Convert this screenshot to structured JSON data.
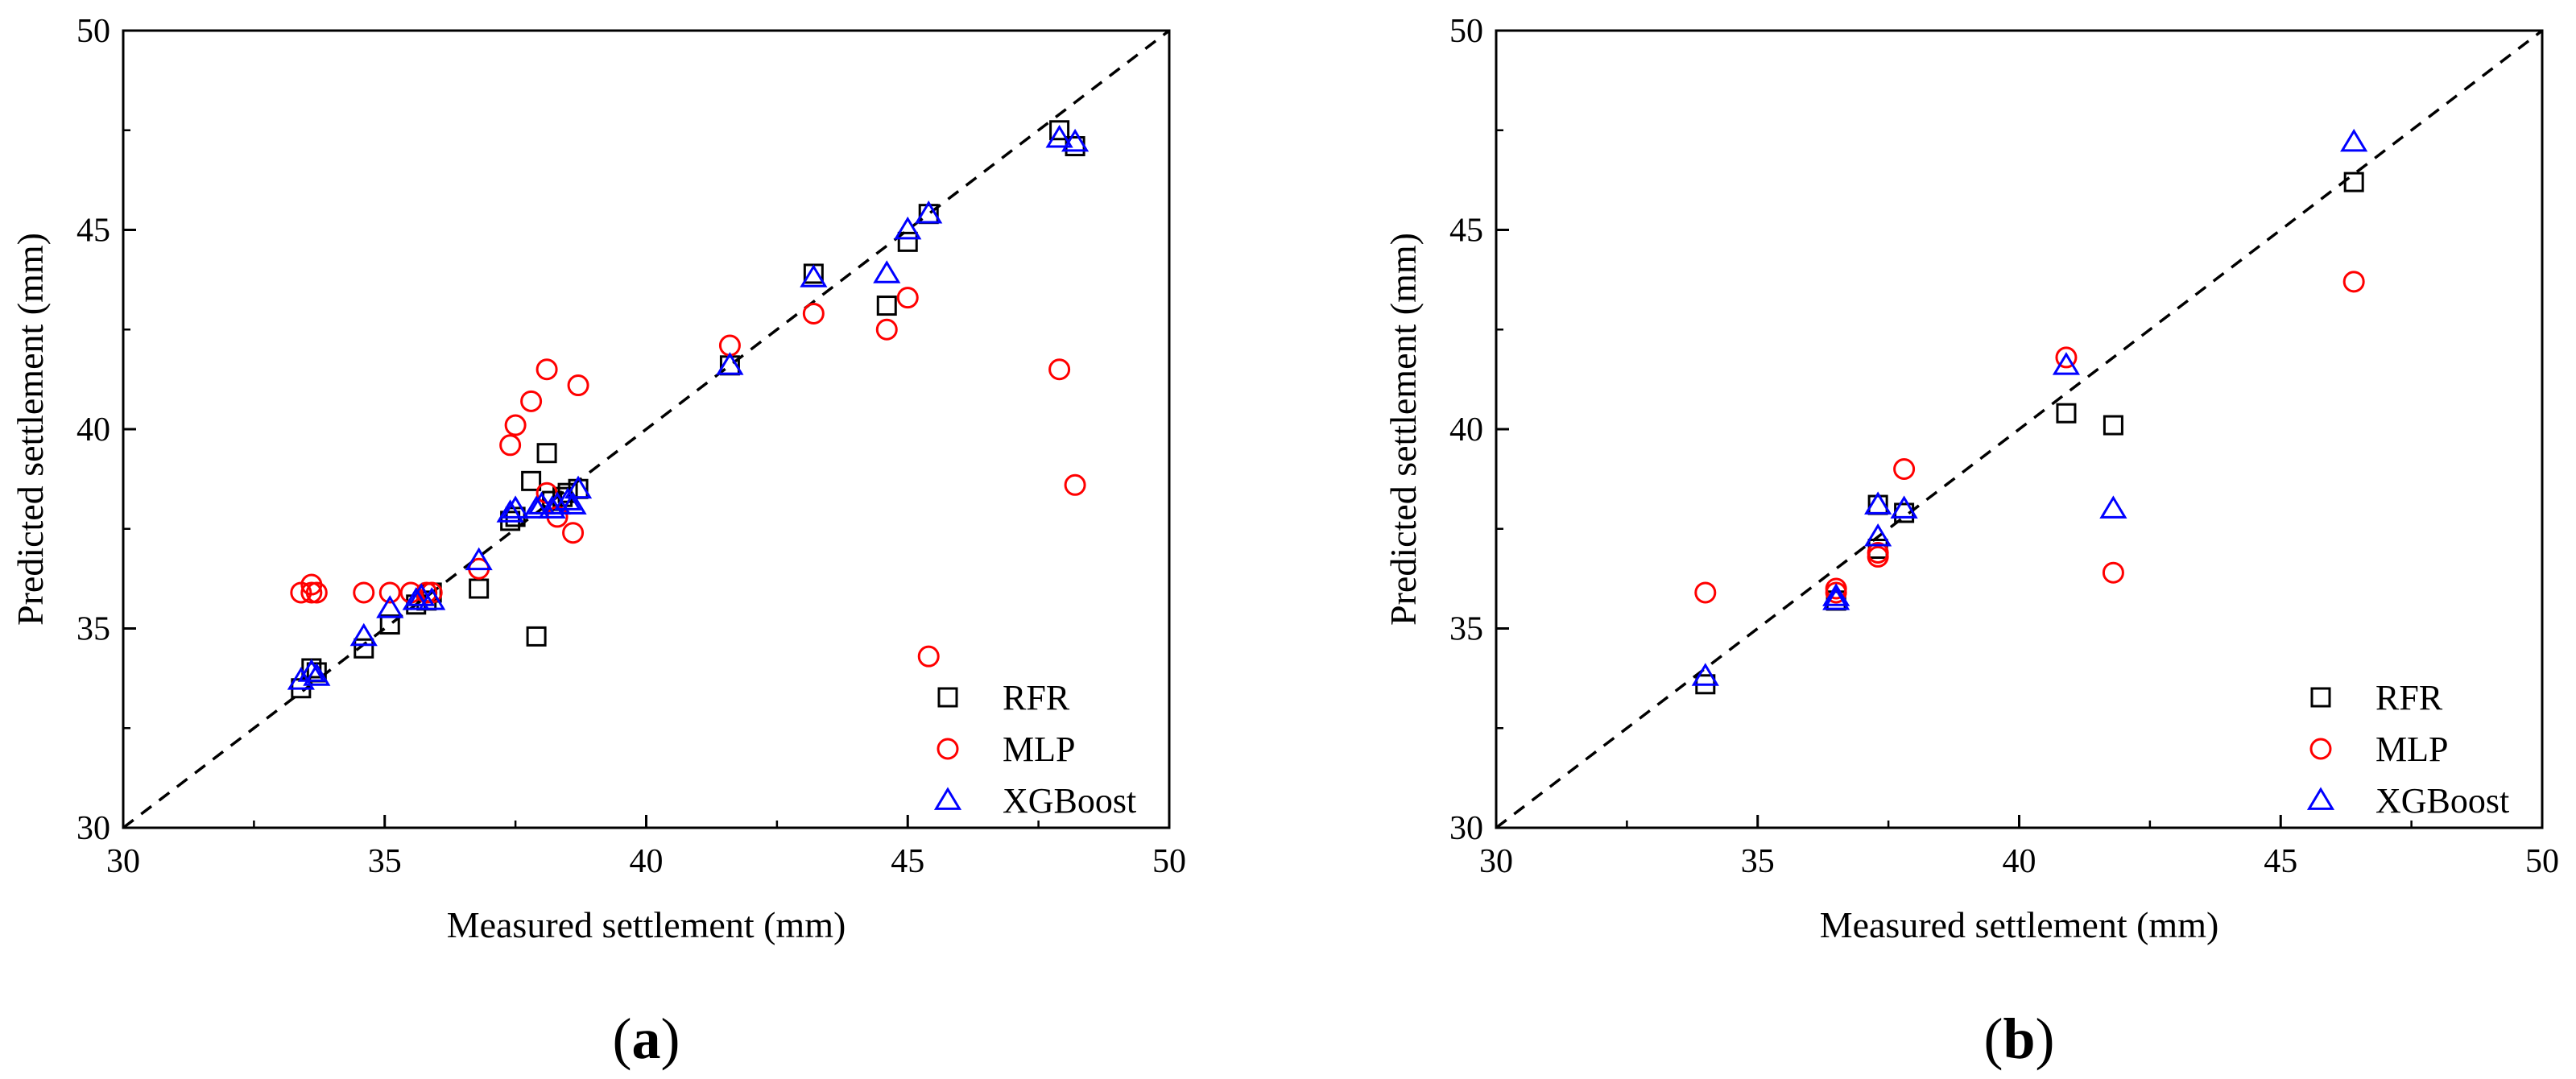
{
  "colors": {
    "RFR": "#000000",
    "MLP": "#ff0000",
    "XGBoost": "#0000ff"
  },
  "chart_data": [
    {
      "type": "scatter",
      "panel_label": "a",
      "xlabel": "Measured settlement (mm)",
      "ylabel": "Predicted settlement (mm)",
      "xlim": [
        30,
        50
      ],
      "ylim": [
        30,
        50
      ],
      "xticks": [
        "30",
        "35",
        "40",
        "45",
        "50"
      ],
      "yticks": [
        "30",
        "35",
        "40",
        "45",
        "50"
      ],
      "reference_line": "y = x (dashed)",
      "legend_position": "bottom-right",
      "series": [
        {
          "name": "RFR",
          "marker": "square",
          "x": [
            33.4,
            33.6,
            33.7,
            34.6,
            35.1,
            35.6,
            35.8,
            35.9,
            36.8,
            37.4,
            37.5,
            37.8,
            37.9,
            38.1,
            38.2,
            38.4,
            38.5,
            38.7,
            41.6,
            43.2,
            44.6,
            45.0,
            45.4,
            47.9,
            48.2
          ],
          "y": [
            33.5,
            34.0,
            33.9,
            34.5,
            35.1,
            35.6,
            35.7,
            35.9,
            36.0,
            37.7,
            37.8,
            38.7,
            34.8,
            39.4,
            38.2,
            38.3,
            38.4,
            38.5,
            41.6,
            43.9,
            43.1,
            44.7,
            45.4,
            47.5,
            47.1
          ]
        },
        {
          "name": "MLP",
          "marker": "circle",
          "x": [
            33.4,
            33.6,
            33.6,
            33.7,
            34.6,
            35.1,
            35.5,
            35.8,
            35.9,
            36.8,
            37.4,
            37.5,
            37.8,
            38.1,
            38.1,
            38.3,
            38.6,
            38.7,
            41.6,
            43.2,
            44.6,
            45.0,
            45.4,
            47.9,
            48.2
          ],
          "y": [
            35.9,
            36.1,
            35.9,
            35.9,
            35.9,
            35.9,
            35.9,
            35.9,
            35.9,
            36.5,
            39.6,
            40.1,
            40.7,
            41.5,
            38.4,
            37.8,
            37.4,
            41.1,
            42.1,
            42.9,
            42.5,
            43.3,
            34.3,
            41.5,
            38.6
          ]
        },
        {
          "name": "XGBoost",
          "marker": "triangle",
          "x": [
            33.4,
            33.6,
            33.7,
            34.6,
            35.1,
            35.6,
            35.7,
            35.9,
            36.8,
            37.4,
            37.5,
            37.9,
            38.0,
            38.2,
            38.3,
            38.5,
            38.6,
            38.7,
            41.6,
            43.2,
            44.6,
            45.0,
            45.4,
            47.9,
            48.2
          ],
          "y": [
            33.7,
            33.9,
            33.8,
            34.8,
            35.5,
            35.7,
            35.8,
            35.7,
            36.7,
            37.9,
            38.0,
            38.0,
            38.1,
            38.0,
            38.1,
            38.2,
            38.1,
            38.5,
            41.6,
            43.8,
            43.9,
            45.0,
            45.4,
            47.3,
            47.2
          ]
        }
      ]
    },
    {
      "type": "scatter",
      "panel_label": "b",
      "xlabel": "Measured settlement (mm)",
      "ylabel": "Predicted settlement (mm)",
      "xlim": [
        30,
        50
      ],
      "ylim": [
        30,
        50
      ],
      "xticks": [
        "30",
        "35",
        "40",
        "45",
        "50"
      ],
      "yticks": [
        "30",
        "35",
        "40",
        "45",
        "50"
      ],
      "reference_line": "y = x (dashed)",
      "legend_position": "bottom-right",
      "series": [
        {
          "name": "RFR",
          "marker": "square",
          "x": [
            34.0,
            36.5,
            36.5,
            37.3,
            37.3,
            37.8,
            40.9,
            41.8,
            46.4
          ],
          "y": [
            33.6,
            35.7,
            35.7,
            38.1,
            37.0,
            37.9,
            40.4,
            40.1,
            46.2
          ]
        },
        {
          "name": "MLP",
          "marker": "circle",
          "x": [
            34.0,
            36.5,
            36.5,
            37.3,
            37.3,
            37.8,
            40.9,
            41.8,
            46.4
          ],
          "y": [
            35.9,
            35.9,
            36.0,
            36.8,
            36.9,
            39.0,
            41.8,
            36.4,
            43.7
          ]
        },
        {
          "name": "XGBoost",
          "marker": "triangle",
          "x": [
            34.0,
            36.5,
            36.5,
            37.3,
            37.3,
            37.8,
            40.9,
            41.8,
            46.4
          ],
          "y": [
            33.8,
            35.7,
            35.8,
            38.1,
            37.3,
            38.0,
            41.6,
            38.0,
            47.2
          ]
        }
      ]
    }
  ]
}
